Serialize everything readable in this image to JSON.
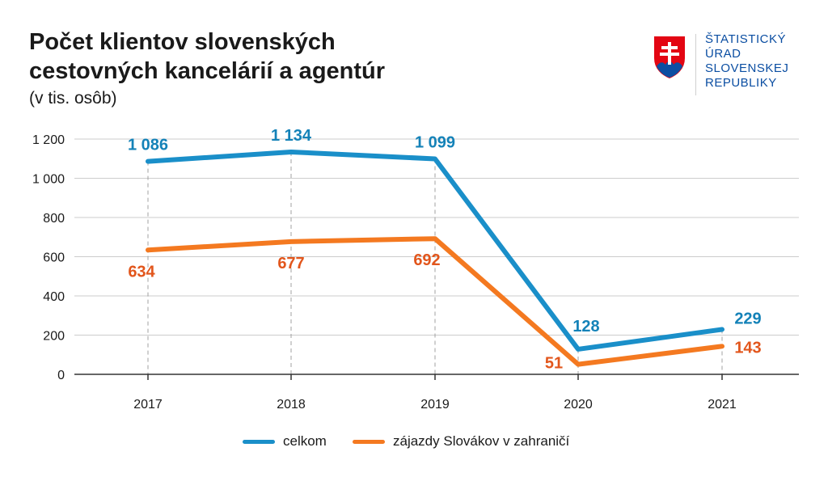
{
  "title_line1": "Počet klientov slovenských",
  "title_line2": "cestovných kancelárií a agentúr",
  "subtitle": "(v tis. osôb)",
  "logo": {
    "line1": "ŠTATISTICKÝ",
    "line2": "ÚRAD",
    "line3": "SLOVENSKEJ",
    "line4": "REPUBLIKY"
  },
  "colors": {
    "celkom": "#1a8fc9",
    "zajazdy": "#f47920",
    "zajazdy_label": "#e2561c",
    "celkom_label": "#1482b8"
  },
  "chart_data": {
    "type": "line",
    "title": "Počet klientov slovenských cestovných kancelárií a agentúr",
    "subtitle": "(v tis. osôb)",
    "categories": [
      "2017",
      "2018",
      "2019",
      "2020",
      "2021"
    ],
    "y_ticks": [
      "0",
      "200",
      "400",
      "600",
      "800",
      "1 000",
      "1 200"
    ],
    "y_tick_values": [
      0,
      200,
      400,
      600,
      800,
      1000,
      1200
    ],
    "ylim": [
      0,
      1200
    ],
    "grid": true,
    "legend_position": "bottom",
    "series": [
      {
        "name": "celkom",
        "values": [
          1086,
          1134,
          1099,
          128,
          229
        ],
        "labels": [
          "1 086",
          "1 134",
          "1 099",
          "128",
          "229"
        ]
      },
      {
        "name": "zájazdy Slovákov v zahraničí",
        "values": [
          634,
          677,
          692,
          51,
          143
        ],
        "labels": [
          "634",
          "677",
          "692",
          "51",
          "143"
        ]
      }
    ]
  }
}
